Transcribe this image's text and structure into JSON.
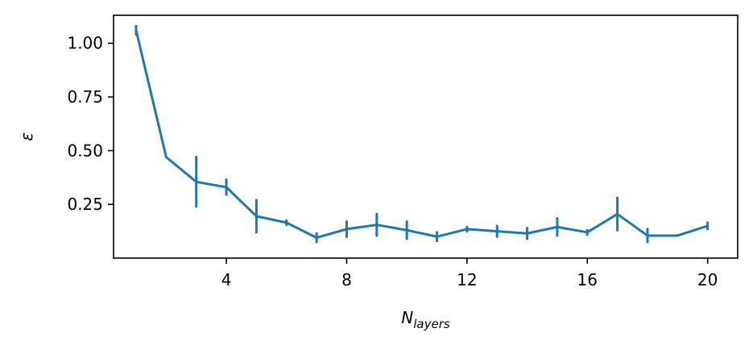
{
  "chart_data": {
    "type": "line",
    "xlabel_main": "N",
    "xlabel_sub": "layers",
    "ylabel": "ε",
    "xlim": [
      0.25,
      21.0
    ],
    "ylim": [
      0.0,
      1.13
    ],
    "xticks": [
      4,
      8,
      12,
      16,
      20
    ],
    "xtick_labels": [
      "4",
      "8",
      "12",
      "16",
      "20"
    ],
    "yticks": [
      0.25,
      0.5,
      0.75,
      1.0
    ],
    "ytick_labels": [
      "0.25",
      "0.50",
      "0.75",
      "1.00"
    ],
    "grid": false,
    "series": [
      {
        "color": "#1f77b4",
        "x": [
          1,
          2,
          3,
          4,
          5,
          6,
          7,
          8,
          9,
          10,
          11,
          12,
          13,
          14,
          15,
          16,
          17,
          18,
          19,
          20
        ],
        "y": [
          1.06,
          0.47,
          0.355,
          0.33,
          0.195,
          0.165,
          0.095,
          0.135,
          0.155,
          0.13,
          0.1,
          0.135,
          0.125,
          0.115,
          0.145,
          0.12,
          0.205,
          0.105,
          0.105,
          0.15
        ],
        "yerr": [
          0.025,
          0.0,
          0.12,
          0.04,
          0.08,
          0.015,
          0.025,
          0.04,
          0.055,
          0.045,
          0.025,
          0.015,
          0.03,
          0.03,
          0.045,
          0.015,
          0.08,
          0.035,
          0.0,
          0.02
        ]
      }
    ]
  }
}
